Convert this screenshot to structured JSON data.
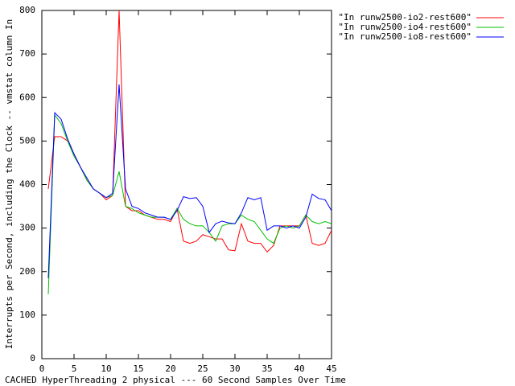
{
  "chart_data": {
    "type": "line",
    "ylabel": "Interrupts per Second, including the Clock -- vmstat column In",
    "xlabel": "CACHED HyperThreading 2 physical --- 60 Second Samples Over Time",
    "x": [
      1,
      2,
      3,
      4,
      5,
      6,
      7,
      8,
      9,
      10,
      11,
      12,
      13,
      14,
      15,
      16,
      17,
      18,
      19,
      20,
      21,
      22,
      23,
      24,
      25,
      26,
      27,
      28,
      29,
      30,
      31,
      32,
      33,
      34,
      35,
      36,
      37,
      38,
      39,
      40,
      41,
      42,
      43,
      44,
      45
    ],
    "series": [
      {
        "name": "\"In runw2500-io2-rest600\"",
        "color": "#ff0000",
        "values": [
          390,
          510,
          510,
          500,
          470,
          440,
          410,
          390,
          380,
          365,
          375,
          800,
          350,
          340,
          340,
          330,
          325,
          320,
          320,
          315,
          345,
          270,
          265,
          270,
          285,
          280,
          275,
          275,
          250,
          248,
          310,
          270,
          265,
          265,
          245,
          260,
          305,
          305,
          305,
          305,
          330,
          265,
          260,
          265,
          295
        ]
      },
      {
        "name": "\"In runw2500-io4-rest600\"",
        "color": "#00c000",
        "values": [
          148,
          560,
          540,
          500,
          465,
          440,
          410,
          390,
          380,
          370,
          375,
          430,
          350,
          345,
          335,
          330,
          325,
          325,
          325,
          320,
          345,
          320,
          310,
          305,
          305,
          290,
          270,
          305,
          310,
          310,
          330,
          320,
          315,
          295,
          275,
          265,
          300,
          305,
          300,
          305,
          330,
          315,
          310,
          315,
          310
        ]
      },
      {
        "name": "\"In runw2500-io8-rest600\"",
        "color": "#0000ff",
        "values": [
          185,
          565,
          550,
          505,
          470,
          440,
          415,
          390,
          380,
          370,
          380,
          630,
          390,
          350,
          345,
          335,
          330,
          325,
          325,
          320,
          340,
          372,
          368,
          370,
          350,
          290,
          310,
          316,
          312,
          310,
          335,
          370,
          365,
          370,
          295,
          305,
          305,
          300,
          305,
          300,
          325,
          378,
          368,
          365,
          340
        ]
      }
    ],
    "xlim": [
      0,
      45
    ],
    "ylim": [
      0,
      800
    ],
    "xticks": [
      0,
      5,
      10,
      15,
      20,
      25,
      30,
      35,
      40,
      45
    ],
    "yticks": [
      0,
      100,
      200,
      300,
      400,
      500,
      600,
      700,
      800
    ],
    "legend": "top-right"
  }
}
